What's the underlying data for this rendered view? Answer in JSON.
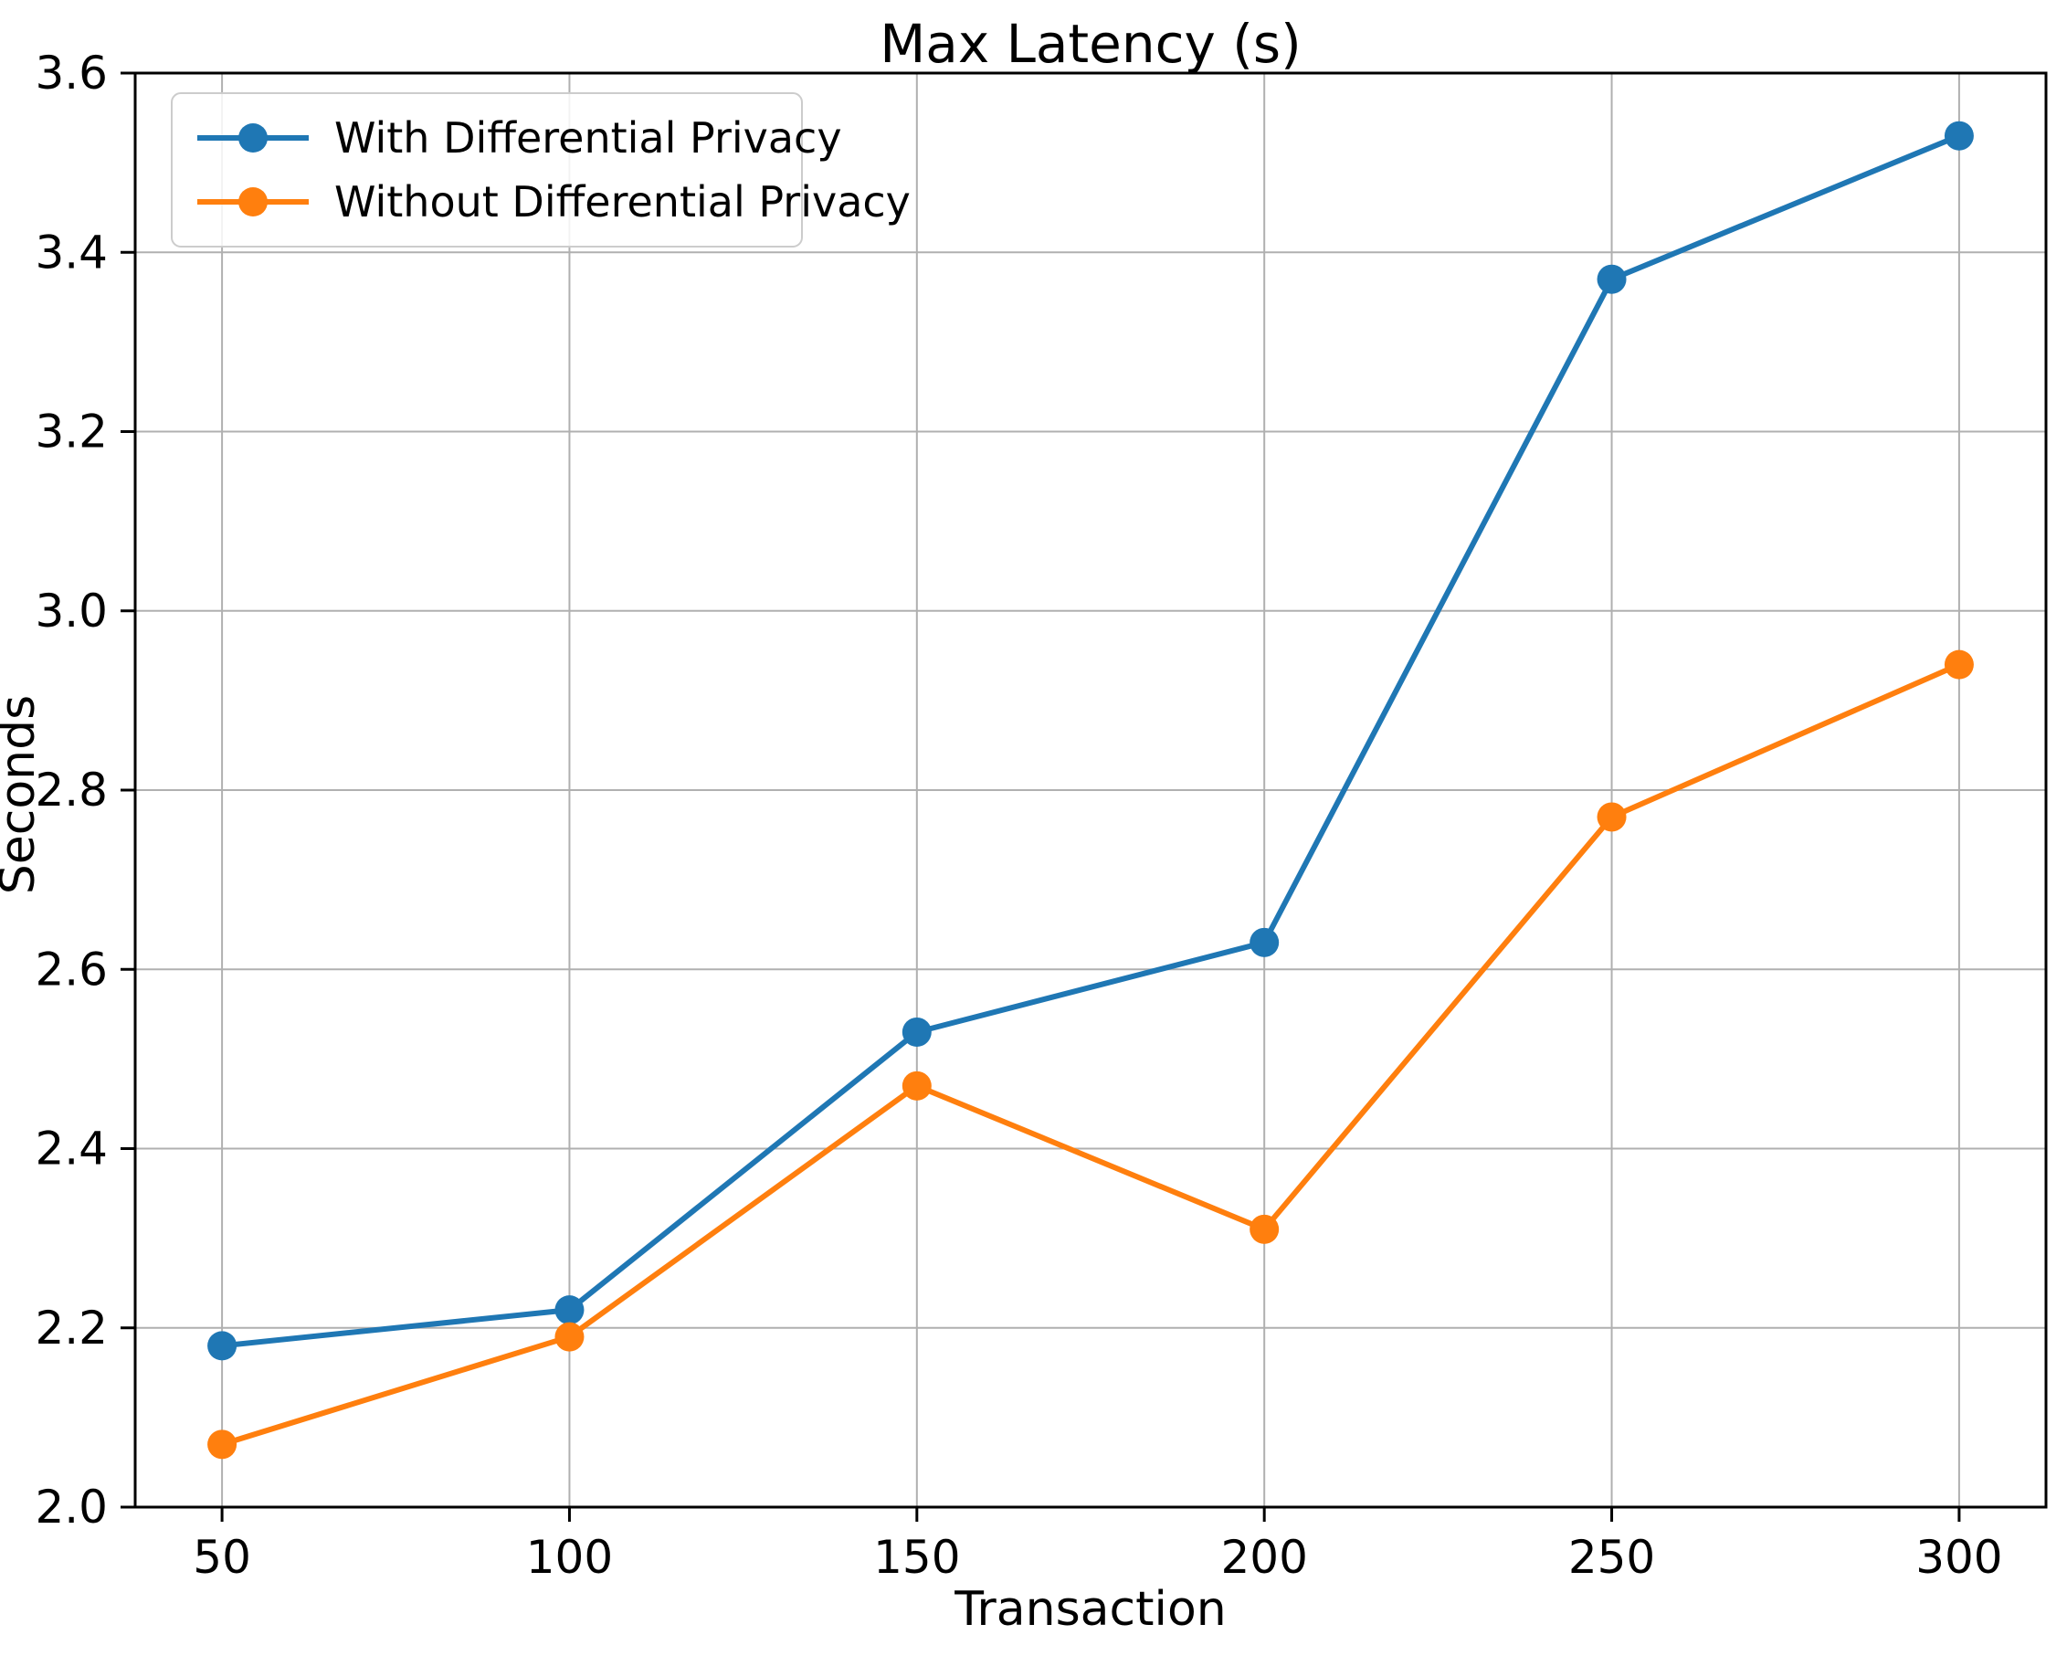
{
  "chart_data": {
    "type": "line",
    "title": "Max Latency (s)",
    "xlabel": "Transaction",
    "ylabel": "Seconds",
    "x": [
      50,
      100,
      150,
      200,
      250,
      300
    ],
    "series": [
      {
        "name": "With Differential Privacy",
        "color": "#1f77b4",
        "values": [
          2.18,
          2.22,
          2.53,
          2.63,
          3.37,
          3.53
        ]
      },
      {
        "name": "Without Differential Privacy",
        "color": "#ff7f0e",
        "values": [
          2.07,
          2.19,
          2.47,
          2.31,
          2.77,
          2.94
        ]
      }
    ],
    "xlim": [
      37.5,
      312.5
    ],
    "ylim": [
      2.0,
      3.6
    ],
    "xticks": [
      50,
      100,
      150,
      200,
      250,
      300
    ],
    "yticks": [
      2.0,
      2.2,
      2.4,
      2.6,
      2.8,
      3.0,
      3.2,
      3.4,
      3.6
    ],
    "grid": true,
    "grid_color": "#b0b0b0",
    "legend_position": "upper left",
    "legend_border_color": "#cccccc"
  }
}
